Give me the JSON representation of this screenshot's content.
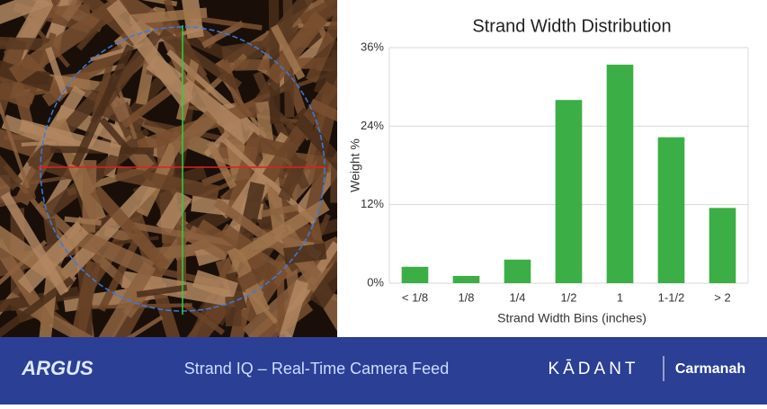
{
  "chart_data": {
    "type": "bar",
    "title": "Strand Width Distribution",
    "x_label": "Strand Width Bins (inches)",
    "y_label": "Weight %",
    "categories": [
      "< 1/8",
      "1/8",
      "1/4",
      "1/2",
      "1",
      "1-1/2",
      "> 2"
    ],
    "values": [
      2.5,
      1.1,
      3.6,
      28.0,
      33.4,
      22.3,
      11.5
    ],
    "color": "#3cae46",
    "ylim": [
      0,
      36
    ],
    "yticks": [
      {
        "value": 0,
        "label": "0%"
      },
      {
        "value": 12,
        "label": "12%"
      },
      {
        "value": 24,
        "label": "24%"
      },
      {
        "value": 36,
        "label": "36%"
      }
    ],
    "grid": true
  },
  "footer": {
    "logo": "ARGUS",
    "caption": "Strand IQ – Real-Time Camera Feed",
    "brand": "KĀDANT",
    "partner": "Carmanah"
  }
}
